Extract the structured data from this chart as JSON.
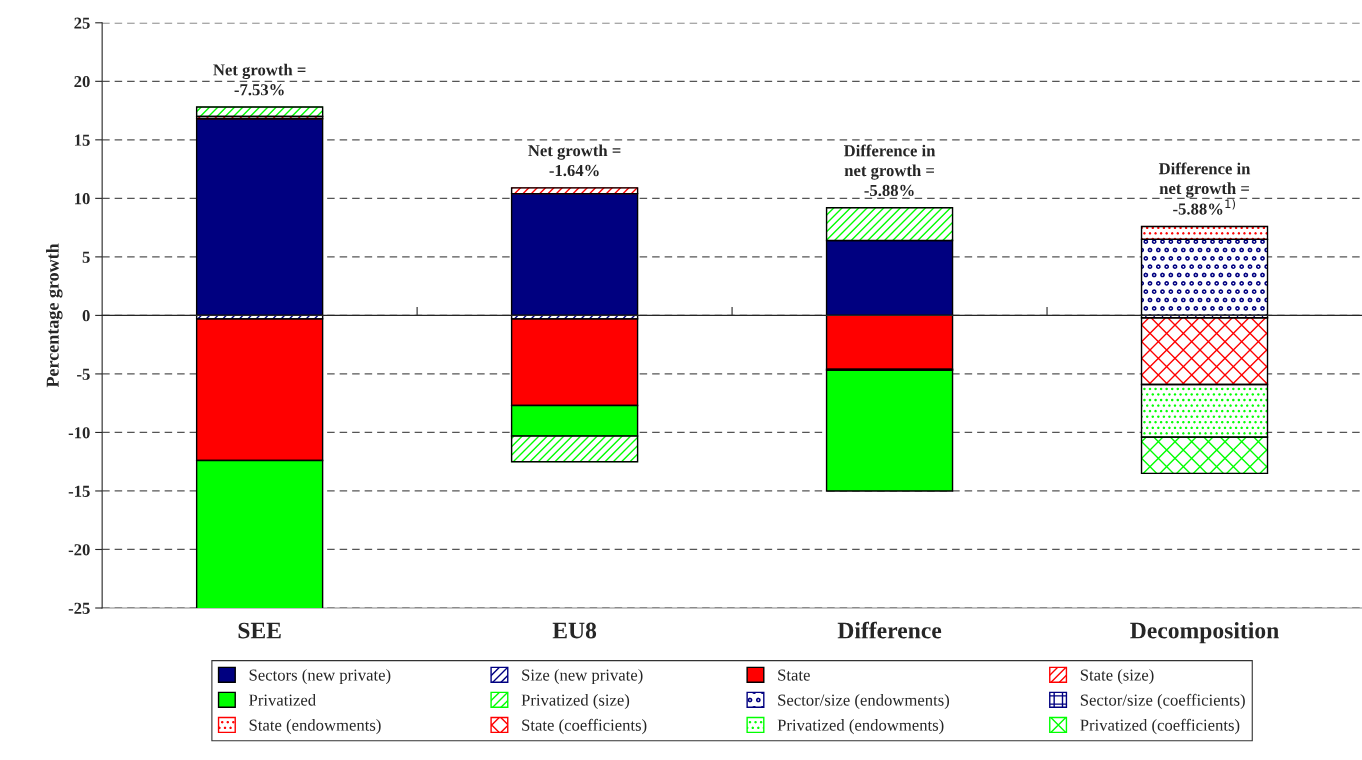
{
  "chart_data": {
    "type": "bar",
    "stacked": true,
    "ylabel": "Percentage growth",
    "categories": [
      "SEE",
      "EU8",
      "Difference",
      "Decomposition"
    ],
    "ylim": [
      -25,
      25
    ],
    "yticks": [
      -25,
      -20,
      -15,
      -10,
      -5,
      0,
      5,
      10,
      15,
      20,
      25
    ],
    "grid": "y",
    "legend": "bottom",
    "series": [
      {
        "name": "Sectors (new private)",
        "color": "#000080",
        "values": [
          16.8,
          10.4,
          6.4,
          null
        ]
      },
      {
        "name": "Size (new private)",
        "color": "#000080",
        "values": [
          -0.3,
          -0.3,
          null,
          null
        ]
      },
      {
        "name": "State",
        "color": "#ff0000",
        "values": [
          -12.1,
          -7.4,
          -4.6,
          null
        ]
      },
      {
        "name": "State (size)",
        "color": "#ff0000",
        "values": [
          0.2,
          0.5,
          -0.1,
          null
        ]
      },
      {
        "name": "Privatized",
        "color": "#00ff00",
        "values": [
          -12.8,
          -2.6,
          -10.3,
          null
        ]
      },
      {
        "name": "Privatized (size)",
        "color": "#00ff00",
        "values": [
          0.8,
          -2.2,
          2.8,
          null
        ]
      },
      {
        "name": "Sector/size (endowments)",
        "color": "#000080",
        "values": [
          null,
          null,
          null,
          6.5
        ]
      },
      {
        "name": "Sector/size (coefficients)",
        "color": "#000080",
        "values": [
          null,
          null,
          null,
          -0.2
        ]
      },
      {
        "name": "State (endowments)",
        "color": "#ff0000",
        "values": [
          null,
          null,
          null,
          1.1
        ]
      },
      {
        "name": "State (coefficients)",
        "color": "#ff0000",
        "values": [
          null,
          null,
          null,
          -5.7
        ]
      },
      {
        "name": "Privatized (endowments)",
        "color": "#00ff00",
        "values": [
          null,
          null,
          null,
          -4.5
        ]
      },
      {
        "name": "Privatized (coefficients)",
        "color": "#00ff00",
        "values": [
          null,
          null,
          null,
          -3.1
        ]
      }
    ],
    "annotations": [
      "Net growth =\n-7.53%",
      "Net growth =\n-1.64%",
      "Difference in\nnet growth =\n-5.88%",
      "Difference in\nnet growth =\n-5.88%$^{1)}$"
    ]
  }
}
